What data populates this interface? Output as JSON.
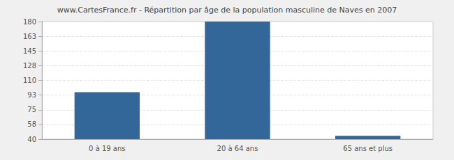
{
  "chart_data": {
    "type": "bar",
    "title": "www.CartesFrance.fr - Répartition par âge de la population masculine de Naves en 2007",
    "categories": [
      "0 à 19 ans",
      "20 à 64 ans",
      "65 ans et plus"
    ],
    "values": [
      96,
      180,
      44
    ],
    "color": "#336699",
    "ylim": [
      40,
      180
    ],
    "yticks": [
      40,
      {
        "value": 57.5,
        "label": "58"
      },
      75,
      {
        "value": 92.5,
        "label": "93"
      },
      110,
      {
        "value": 127.5,
        "label": "128"
      },
      145,
      {
        "value": 162.5,
        "label": "163"
      },
      180
    ],
    "grid": true
  }
}
